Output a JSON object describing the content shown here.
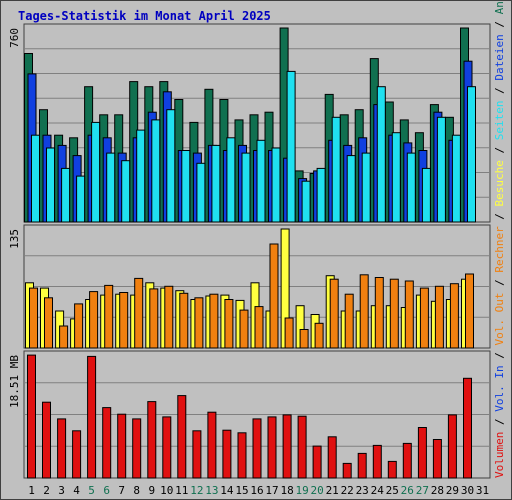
{
  "title": "Tages-Statistik im Monat April 2025",
  "colors": {
    "background": "#c0c0c0",
    "frame": "#404040",
    "title": "#0000c0",
    "grid": "#808080",
    "anfragen": "#107050",
    "dateien": "#1040e0",
    "seiten": "#20e0f0",
    "besuche": "#ffff40",
    "rechner": "#f08010",
    "volumen": "#e01010",
    "weekend_label": "#107050",
    "weekday_label": "#000000"
  },
  "chart_data": [
    {
      "type": "bar",
      "name": "hits-panel",
      "ymax_label": "760",
      "ylim": [
        0,
        760
      ],
      "x": [
        1,
        2,
        3,
        4,
        5,
        6,
        7,
        8,
        9,
        10,
        11,
        12,
        13,
        14,
        15,
        16,
        17,
        18,
        19,
        20,
        21,
        22,
        23,
        24,
        25,
        26,
        27,
        28,
        29,
        30,
        31
      ],
      "weekend_days": [
        5,
        6,
        12,
        13,
        19,
        20,
        26,
        27
      ],
      "series": [
        {
          "name": "Anfragen",
          "color": "#107050",
          "values": [
            660,
            440,
            340,
            330,
            530,
            420,
            420,
            550,
            530,
            550,
            480,
            390,
            520,
            480,
            400,
            420,
            430,
            760,
            200,
            190,
            500,
            420,
            440,
            640,
            470,
            400,
            350,
            460,
            410,
            760,
            0
          ]
        },
        {
          "name": "Dateien",
          "color": "#1040e0",
          "values": [
            580,
            340,
            300,
            260,
            340,
            330,
            270,
            330,
            430,
            510,
            280,
            270,
            300,
            280,
            300,
            280,
            280,
            250,
            170,
            200,
            320,
            300,
            330,
            460,
            340,
            310,
            280,
            430,
            320,
            630,
            0
          ]
        },
        {
          "name": "Seiten",
          "color": "#20e0f0",
          "values": [
            340,
            290,
            210,
            180,
            390,
            270,
            240,
            360,
            400,
            440,
            280,
            230,
            300,
            330,
            270,
            320,
            290,
            590,
            160,
            210,
            410,
            260,
            270,
            530,
            350,
            270,
            210,
            410,
            340,
            530,
            0
          ]
        }
      ],
      "legend": [
        "Anfragen",
        "Dateien",
        "Seiten"
      ],
      "legend_separator": " / "
    },
    {
      "type": "bar",
      "name": "visits-panel",
      "ymax_label": "135",
      "ylim": [
        0,
        135
      ],
      "x": [
        1,
        2,
        3,
        4,
        5,
        6,
        7,
        8,
        9,
        10,
        11,
        12,
        13,
        14,
        15,
        16,
        17,
        18,
        19,
        20,
        21,
        22,
        23,
        24,
        25,
        26,
        27,
        28,
        29,
        30,
        31
      ],
      "series": [
        {
          "name": "Besuche",
          "color": "#ffff40",
          "values": [
            74,
            68,
            42,
            33,
            55,
            60,
            61,
            60,
            74,
            68,
            65,
            55,
            59,
            60,
            54,
            74,
            42,
            135,
            48,
            38,
            82,
            42,
            42,
            48,
            48,
            46,
            60,
            53,
            55,
            78,
            0
          ]
        },
        {
          "name": "Rechner",
          "color": "#f08010",
          "values": [
            68,
            57,
            25,
            50,
            64,
            71,
            63,
            79,
            67,
            70,
            62,
            57,
            61,
            55,
            43,
            47,
            118,
            34,
            21,
            28,
            78,
            61,
            83,
            80,
            78,
            76,
            68,
            70,
            73,
            84,
            0
          ]
        }
      ],
      "legend": [
        "Besuche",
        "Rechner"
      ]
    },
    {
      "type": "bar",
      "name": "volume-panel",
      "ymax_label": "18.51 MB",
      "ylim": [
        0,
        18.51
      ],
      "x": [
        1,
        2,
        3,
        4,
        5,
        6,
        7,
        8,
        9,
        10,
        11,
        12,
        13,
        14,
        15,
        16,
        17,
        18,
        19,
        20,
        21,
        22,
        23,
        24,
        25,
        26,
        27,
        28,
        29,
        30,
        31
      ],
      "series": [
        {
          "name": "Volumen",
          "color": "#e01010",
          "values": [
            18.5,
            11.4,
            8.9,
            7.1,
            18.3,
            10.6,
            9.6,
            8.9,
            11.5,
            9.2,
            12.4,
            7.1,
            9.9,
            7.2,
            6.8,
            8.9,
            9.2,
            9.5,
            9.3,
            4.8,
            6.2,
            2.2,
            3.7,
            4.9,
            2.5,
            5.2,
            7.6,
            5.8,
            9.5,
            15.0,
            0
          ]
        }
      ],
      "legend": [
        "Volumen"
      ]
    }
  ],
  "right_labels": [
    "Anfragen",
    "Dateien",
    "Seiten",
    "Besuche",
    "Rechner",
    "Vol. Out",
    "Vol. In",
    "Volumen"
  ],
  "right_label_separator": " / "
}
